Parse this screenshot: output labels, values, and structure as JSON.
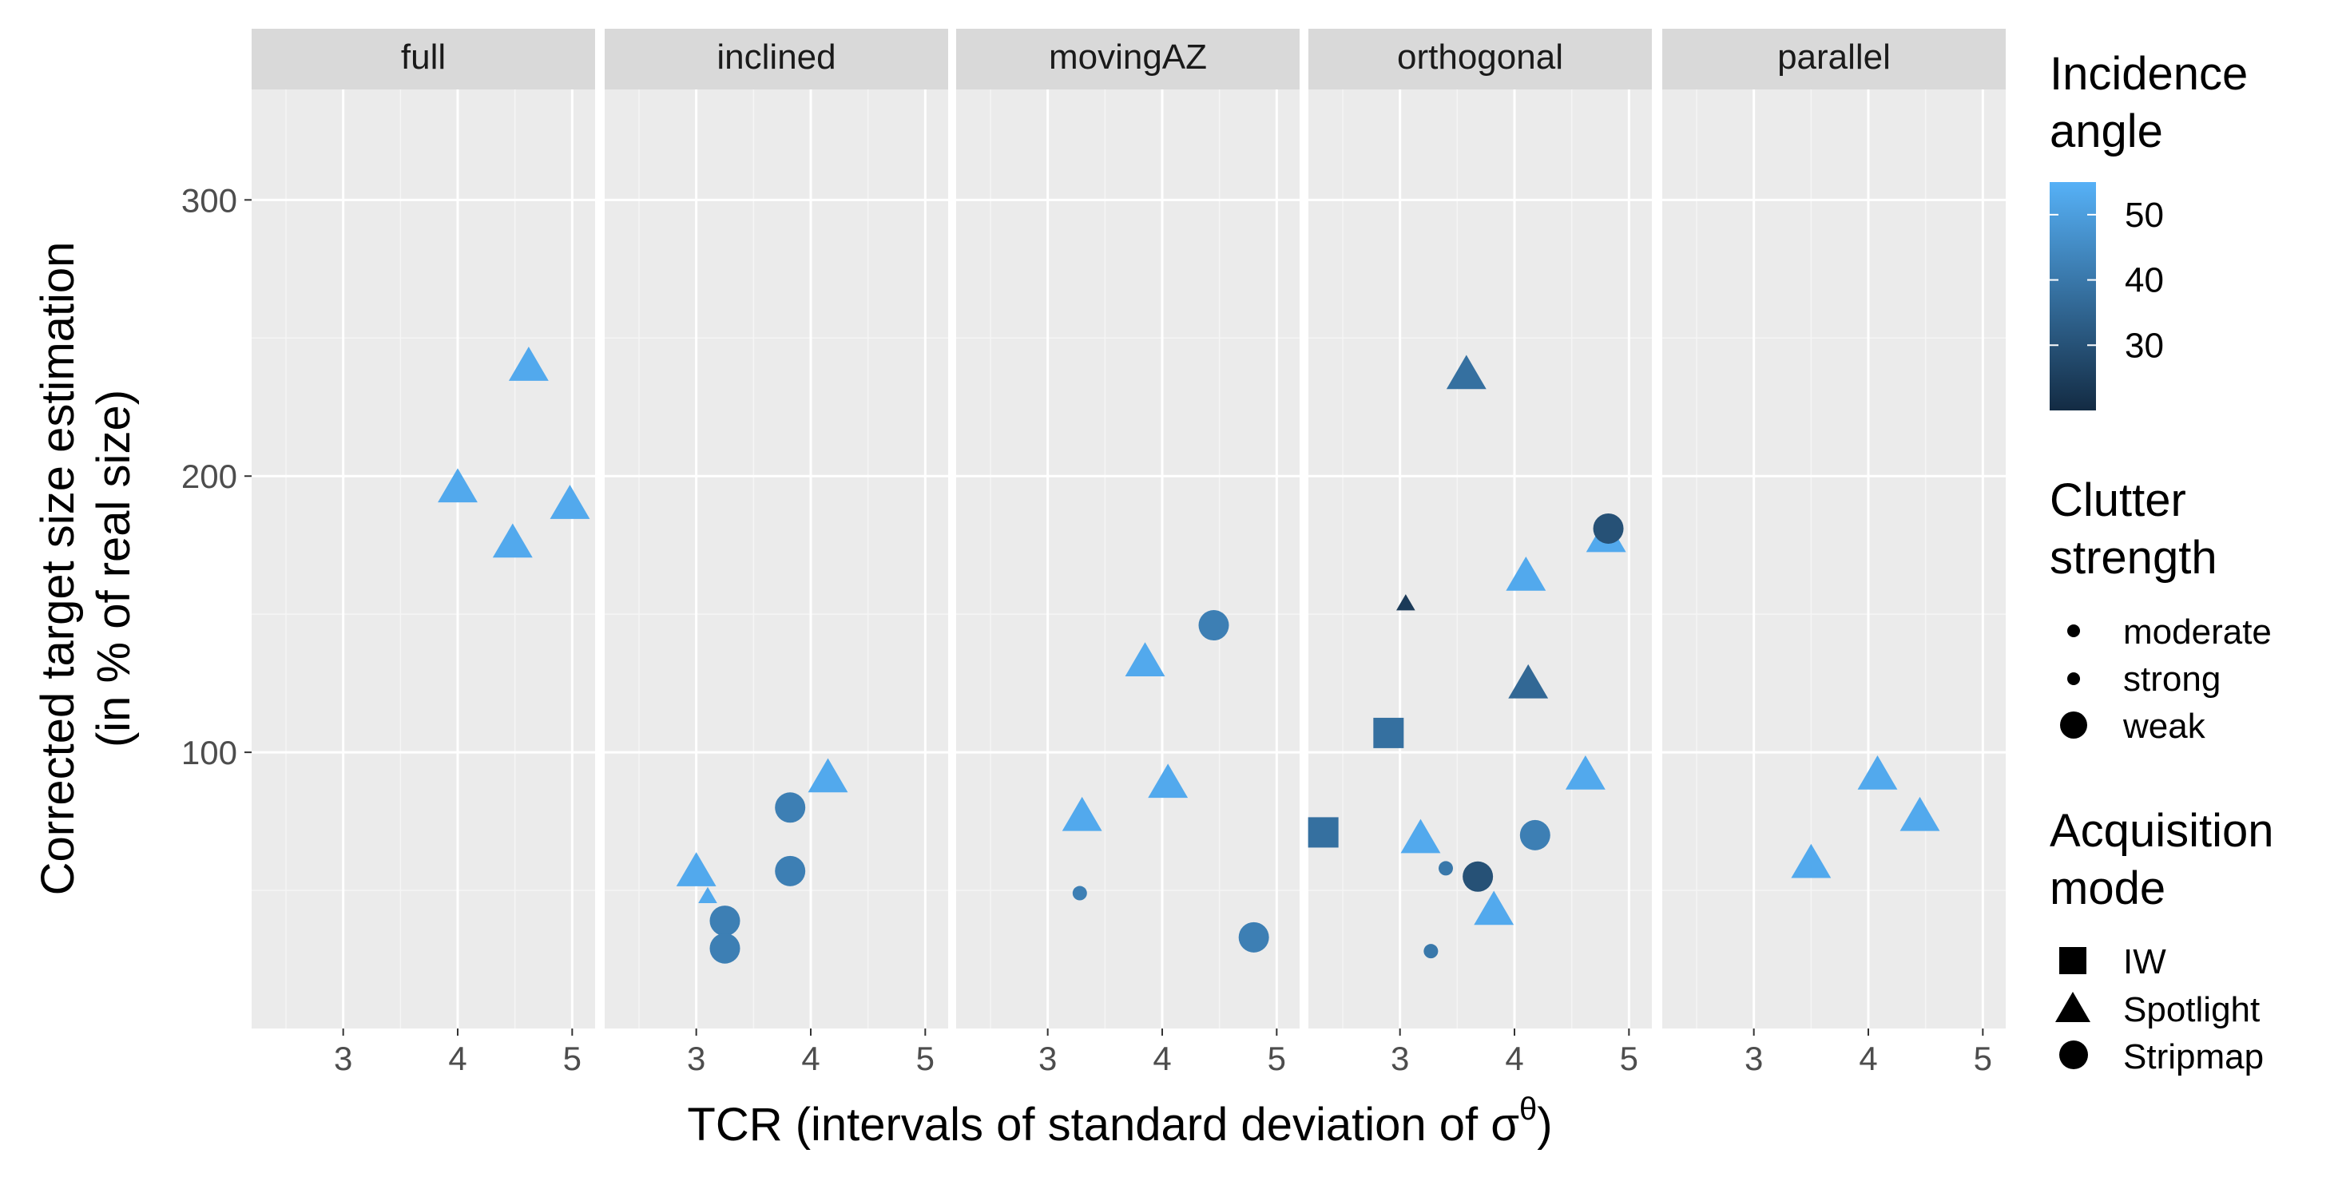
{
  "chart_data": {
    "type": "scatter",
    "facets": [
      "full",
      "inclined",
      "movingAZ",
      "orthogonal",
      "parallel"
    ],
    "xlabel": "TCR (intervals of standard deviation of σ",
    "xlabel_superscript": "θ",
    "xlabel_close": ")",
    "ylabel_line1": "Corrected target size estimation",
    "ylabel_line2": "(in % of real size)",
    "xlim": [
      2.2,
      5.2
    ],
    "ylim": [
      0,
      340
    ],
    "x_ticks": [
      3,
      4,
      5
    ],
    "y_ticks": [
      100,
      200,
      300
    ],
    "grid": true,
    "legends": {
      "incidence": {
        "title_line1": "Incidence",
        "title_line2": "angle",
        "ticks": [
          50,
          40,
          30
        ],
        "range": [
          20,
          55
        ],
        "color_low": "#132B43",
        "color_high": "#56B1F7"
      },
      "clutter": {
        "title_line1": "Clutter",
        "title_line2": "strength",
        "items": [
          "moderate",
          "strong",
          "weak"
        ]
      },
      "acquisition": {
        "title_line1": "Acquisition",
        "title_line2": "mode",
        "items": [
          "IW",
          "Spotlight",
          "Stripmap"
        ]
      }
    },
    "points": [
      {
        "facet": "full",
        "x": 4.0,
        "y": 196,
        "mode": "Spotlight",
        "clutter": "weak",
        "angle": 53
      },
      {
        "facet": "full",
        "x": 4.48,
        "y": 176,
        "mode": "Spotlight",
        "clutter": "weak",
        "angle": 53
      },
      {
        "facet": "full",
        "x": 4.62,
        "y": 240,
        "mode": "Spotlight",
        "clutter": "weak",
        "angle": 53
      },
      {
        "facet": "full",
        "x": 4.98,
        "y": 190,
        "mode": "Spotlight",
        "clutter": "weak",
        "angle": 53
      },
      {
        "facet": "inclined",
        "x": 3.0,
        "y": 57,
        "mode": "Spotlight",
        "clutter": "weak",
        "angle": 53
      },
      {
        "facet": "inclined",
        "x": 3.1,
        "y": 48,
        "mode": "Spotlight",
        "clutter": "moderate",
        "angle": 53
      },
      {
        "facet": "inclined",
        "x": 3.25,
        "y": 39,
        "mode": "Stripmap",
        "clutter": "weak",
        "angle": 42
      },
      {
        "facet": "inclined",
        "x": 3.25,
        "y": 29,
        "mode": "Stripmap",
        "clutter": "weak",
        "angle": 42
      },
      {
        "facet": "inclined",
        "x": 3.82,
        "y": 57,
        "mode": "Stripmap",
        "clutter": "weak",
        "angle": 42
      },
      {
        "facet": "inclined",
        "x": 3.82,
        "y": 80,
        "mode": "Stripmap",
        "clutter": "weak",
        "angle": 42
      },
      {
        "facet": "inclined",
        "x": 4.15,
        "y": 91,
        "mode": "Spotlight",
        "clutter": "weak",
        "angle": 53
      },
      {
        "facet": "movingAZ",
        "x": 3.28,
        "y": 49,
        "mode": "Stripmap",
        "clutter": "moderate",
        "angle": 42
      },
      {
        "facet": "movingAZ",
        "x": 3.3,
        "y": 77,
        "mode": "Spotlight",
        "clutter": "weak",
        "angle": 53
      },
      {
        "facet": "movingAZ",
        "x": 3.85,
        "y": 133,
        "mode": "Spotlight",
        "clutter": "weak",
        "angle": 53
      },
      {
        "facet": "movingAZ",
        "x": 4.05,
        "y": 89,
        "mode": "Spotlight",
        "clutter": "weak",
        "angle": 53
      },
      {
        "facet": "movingAZ",
        "x": 4.45,
        "y": 146,
        "mode": "Stripmap",
        "clutter": "weak",
        "angle": 42
      },
      {
        "facet": "movingAZ",
        "x": 4.8,
        "y": 33,
        "mode": "Stripmap",
        "clutter": "weak",
        "angle": 42
      },
      {
        "facet": "orthogonal",
        "x": 2.33,
        "y": 71,
        "mode": "IW",
        "clutter": "weak",
        "angle": 38
      },
      {
        "facet": "orthogonal",
        "x": 2.9,
        "y": 107,
        "mode": "IW",
        "clutter": "weak",
        "angle": 38
      },
      {
        "facet": "orthogonal",
        "x": 3.05,
        "y": 154,
        "mode": "Spotlight",
        "clutter": "moderate",
        "angle": 24
      },
      {
        "facet": "orthogonal",
        "x": 3.18,
        "y": 69,
        "mode": "Spotlight",
        "clutter": "weak",
        "angle": 53
      },
      {
        "facet": "orthogonal",
        "x": 3.27,
        "y": 28,
        "mode": "Stripmap",
        "clutter": "moderate",
        "angle": 40
      },
      {
        "facet": "orthogonal",
        "x": 3.4,
        "y": 58,
        "mode": "Stripmap",
        "clutter": "moderate",
        "angle": 40
      },
      {
        "facet": "orthogonal",
        "x": 3.58,
        "y": 237,
        "mode": "Spotlight",
        "clutter": "weak",
        "angle": 38
      },
      {
        "facet": "orthogonal",
        "x": 3.68,
        "y": 55,
        "mode": "Stripmap",
        "clutter": "weak",
        "angle": 30
      },
      {
        "facet": "orthogonal",
        "x": 3.82,
        "y": 43,
        "mode": "Spotlight",
        "clutter": "weak",
        "angle": 53
      },
      {
        "facet": "orthogonal",
        "x": 4.1,
        "y": 164,
        "mode": "Spotlight",
        "clutter": "weak",
        "angle": 53
      },
      {
        "facet": "orthogonal",
        "x": 4.12,
        "y": 125,
        "mode": "Spotlight",
        "clutter": "weak",
        "angle": 36
      },
      {
        "facet": "orthogonal",
        "x": 4.18,
        "y": 70,
        "mode": "Stripmap",
        "clutter": "weak",
        "angle": 42
      },
      {
        "facet": "orthogonal",
        "x": 4.62,
        "y": 92,
        "mode": "Spotlight",
        "clutter": "weak",
        "angle": 53
      },
      {
        "facet": "orthogonal",
        "x": 4.8,
        "y": 178,
        "mode": "Spotlight",
        "clutter": "weak",
        "angle": 53
      },
      {
        "facet": "orthogonal",
        "x": 4.82,
        "y": 181,
        "mode": "Stripmap",
        "clutter": "weak",
        "angle": 30
      },
      {
        "facet": "parallel",
        "x": 3.5,
        "y": 60,
        "mode": "Spotlight",
        "clutter": "weak",
        "angle": 53
      },
      {
        "facet": "parallel",
        "x": 4.08,
        "y": 92,
        "mode": "Spotlight",
        "clutter": "weak",
        "angle": 53
      },
      {
        "facet": "parallel",
        "x": 4.45,
        "y": 77,
        "mode": "Spotlight",
        "clutter": "weak",
        "angle": 53
      }
    ]
  }
}
